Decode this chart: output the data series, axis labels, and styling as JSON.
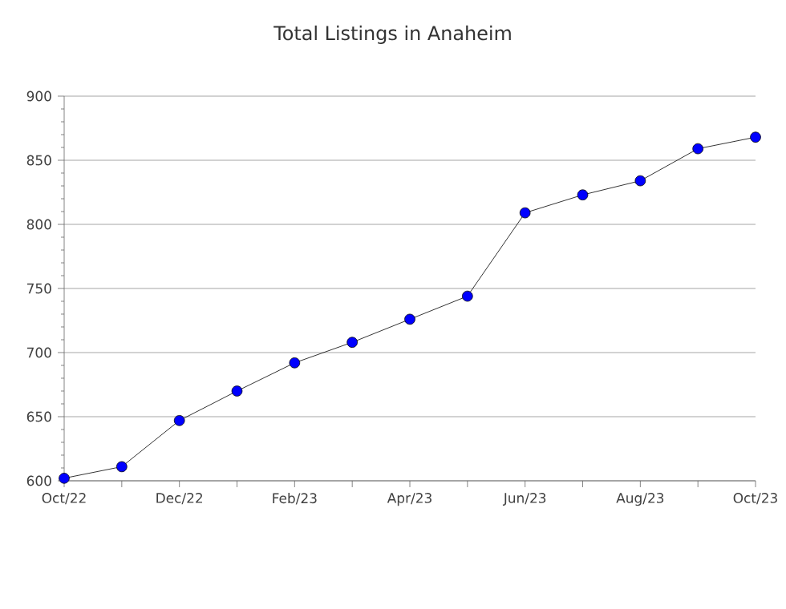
{
  "chart_data": {
    "type": "line",
    "title": "Total Listings in Anaheim",
    "categories": [
      "Oct/22",
      null,
      "Dec/22",
      null,
      "Feb/23",
      null,
      "Apr/23",
      null,
      "Jun/23",
      null,
      "Aug/23",
      null,
      "Oct/23"
    ],
    "series": [
      {
        "color": "#0000ff",
        "values": [
          602,
          611,
          647,
          670,
          692,
          708,
          726,
          744,
          809,
          823,
          834,
          859,
          868
        ]
      }
    ],
    "ylim": [
      600,
      900
    ],
    "yticks": [
      600,
      650,
      700,
      750,
      800,
      850,
      900
    ],
    "grid": "y",
    "marker": "circle",
    "line_style": "solid"
  }
}
